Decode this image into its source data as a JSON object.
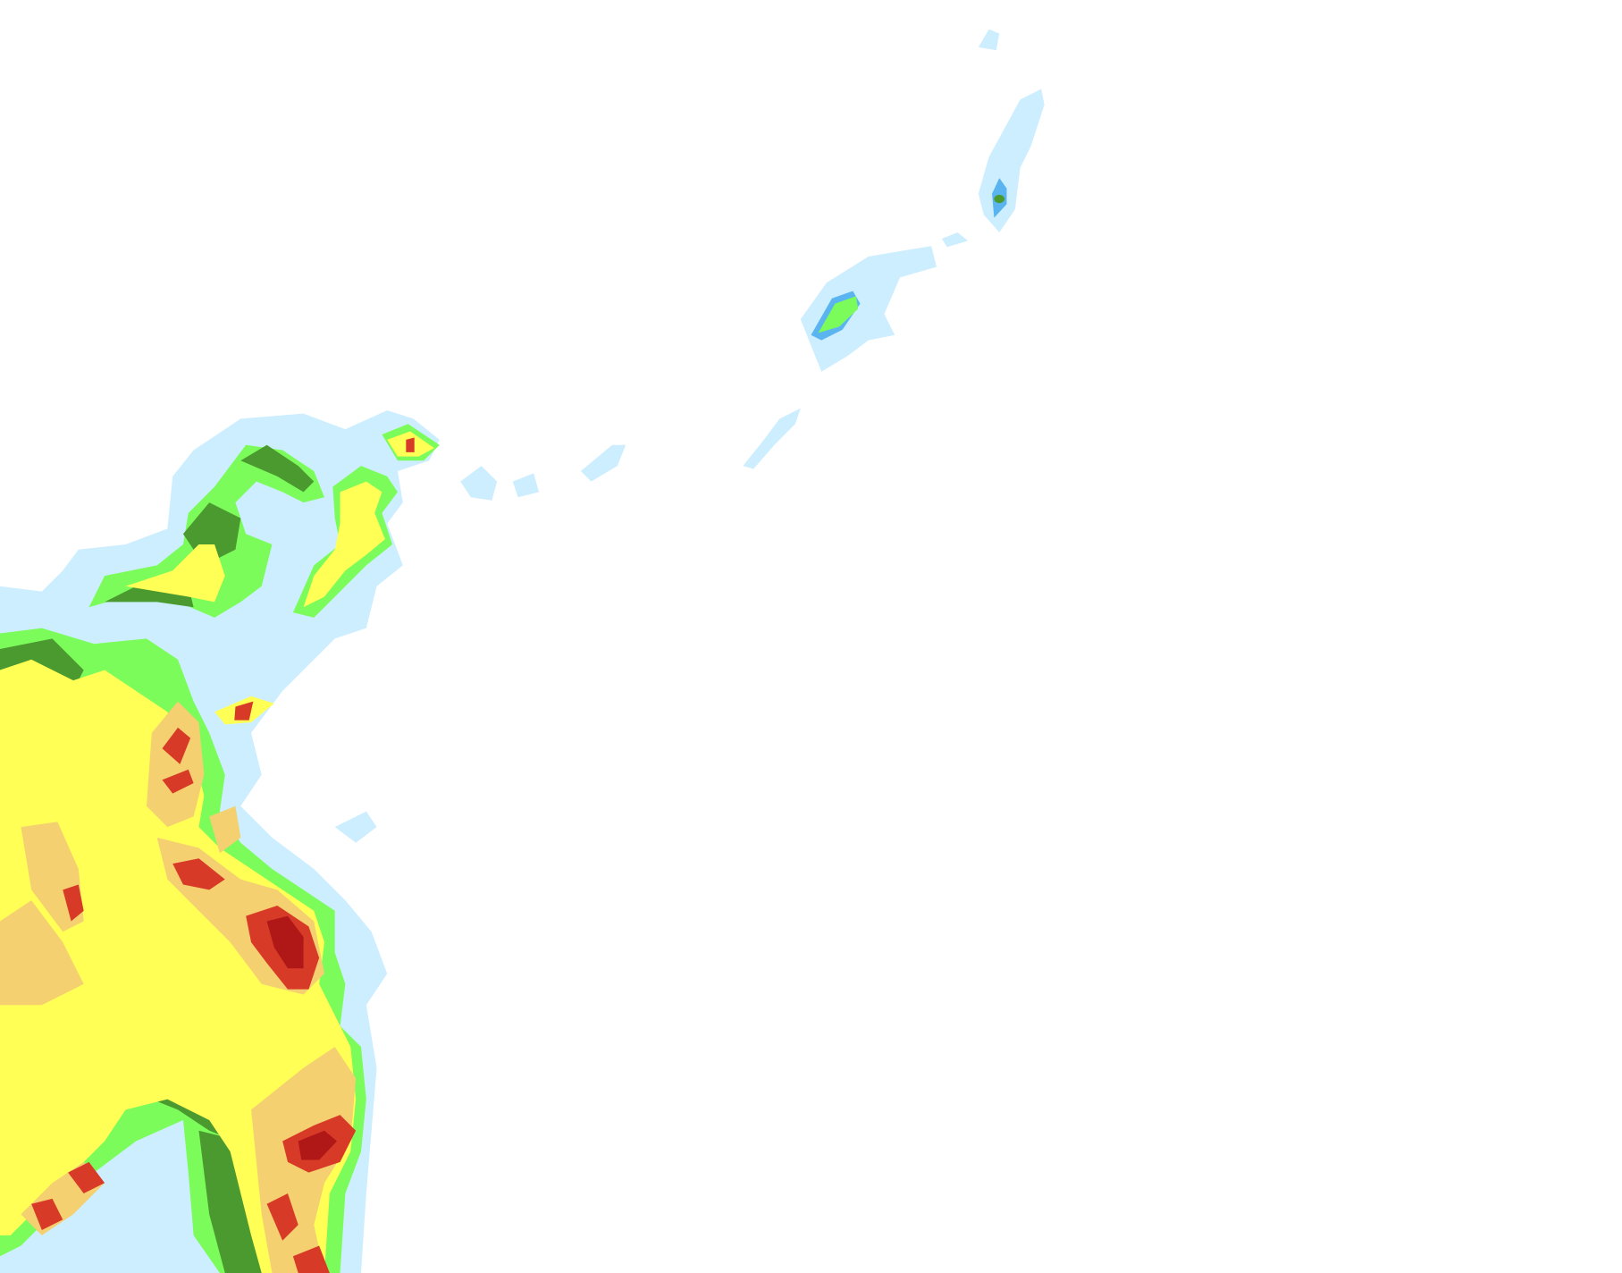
{
  "map": {
    "background": "#ffffff",
    "colors": {
      "level1": "#cdeeff",
      "level2": "#5ab4f0",
      "level3": "#7cfc5a",
      "level4": "#4a9a30",
      "level5": "#ffff55",
      "level6": "#f5d070",
      "level7": "#f0a050",
      "level8": "#d83a28",
      "level9": "#b01818"
    }
  }
}
